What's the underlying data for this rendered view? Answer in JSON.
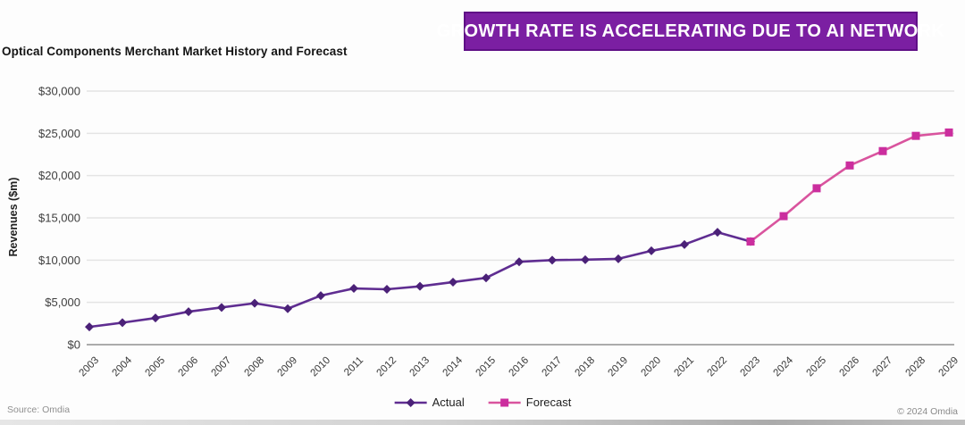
{
  "page": {
    "title": "Optical Components Merchant Market History and Forecast",
    "banner": "GROWTH RATE IS ACCELERATING DUE TO AI NETWORK",
    "source": "Source: Omdia",
    "copyright": "© 2024 Omdia"
  },
  "colors": {
    "banner_bg": "#7b1fa2",
    "banner_border": "#5f0f86",
    "actual_line": "#5f2d91",
    "actual_marker": "#4b2178",
    "forecast_line": "#d9549e",
    "forecast_marker": "#cb2e9e",
    "grid": "#e4e4e4",
    "axis": "#ababab"
  },
  "chart_data": {
    "type": "line",
    "title": "Optical Components Merchant Market History and Forecast",
    "xlabel": "",
    "ylabel": "Revenues ($m)",
    "ylim": [
      0,
      30000
    ],
    "ytick_step": 5000,
    "ytick_labels": [
      "$0",
      "$5,000",
      "$10,000",
      "$15,000",
      "$20,000",
      "$25,000",
      "$30,000"
    ],
    "grid": true,
    "legend_position": "bottom",
    "categories": [
      "2003",
      "2004",
      "2005",
      "2006",
      "2007",
      "2008",
      "2009",
      "2010",
      "2011",
      "2012",
      "2013",
      "2014",
      "2015",
      "2016",
      "2017",
      "2018",
      "2019",
      "2020",
      "2021",
      "2022",
      "2023",
      "2024",
      "2025",
      "2026",
      "2027",
      "2028",
      "2029"
    ],
    "series": [
      {
        "name": "Actual",
        "marker": "diamond",
        "values": [
          2100,
          2600,
          3150,
          3900,
          4400,
          4900,
          4250,
          5800,
          6650,
          6550,
          6900,
          7400,
          7900,
          9800,
          10000,
          10050,
          10150,
          11100,
          11850,
          13300,
          12200,
          null,
          null,
          null,
          null,
          null,
          null
        ]
      },
      {
        "name": "Forecast",
        "marker": "square",
        "values": [
          null,
          null,
          null,
          null,
          null,
          null,
          null,
          null,
          null,
          null,
          null,
          null,
          null,
          null,
          null,
          null,
          null,
          null,
          null,
          null,
          12200,
          15200,
          18500,
          21200,
          22900,
          24700,
          25100
        ]
      }
    ]
  }
}
